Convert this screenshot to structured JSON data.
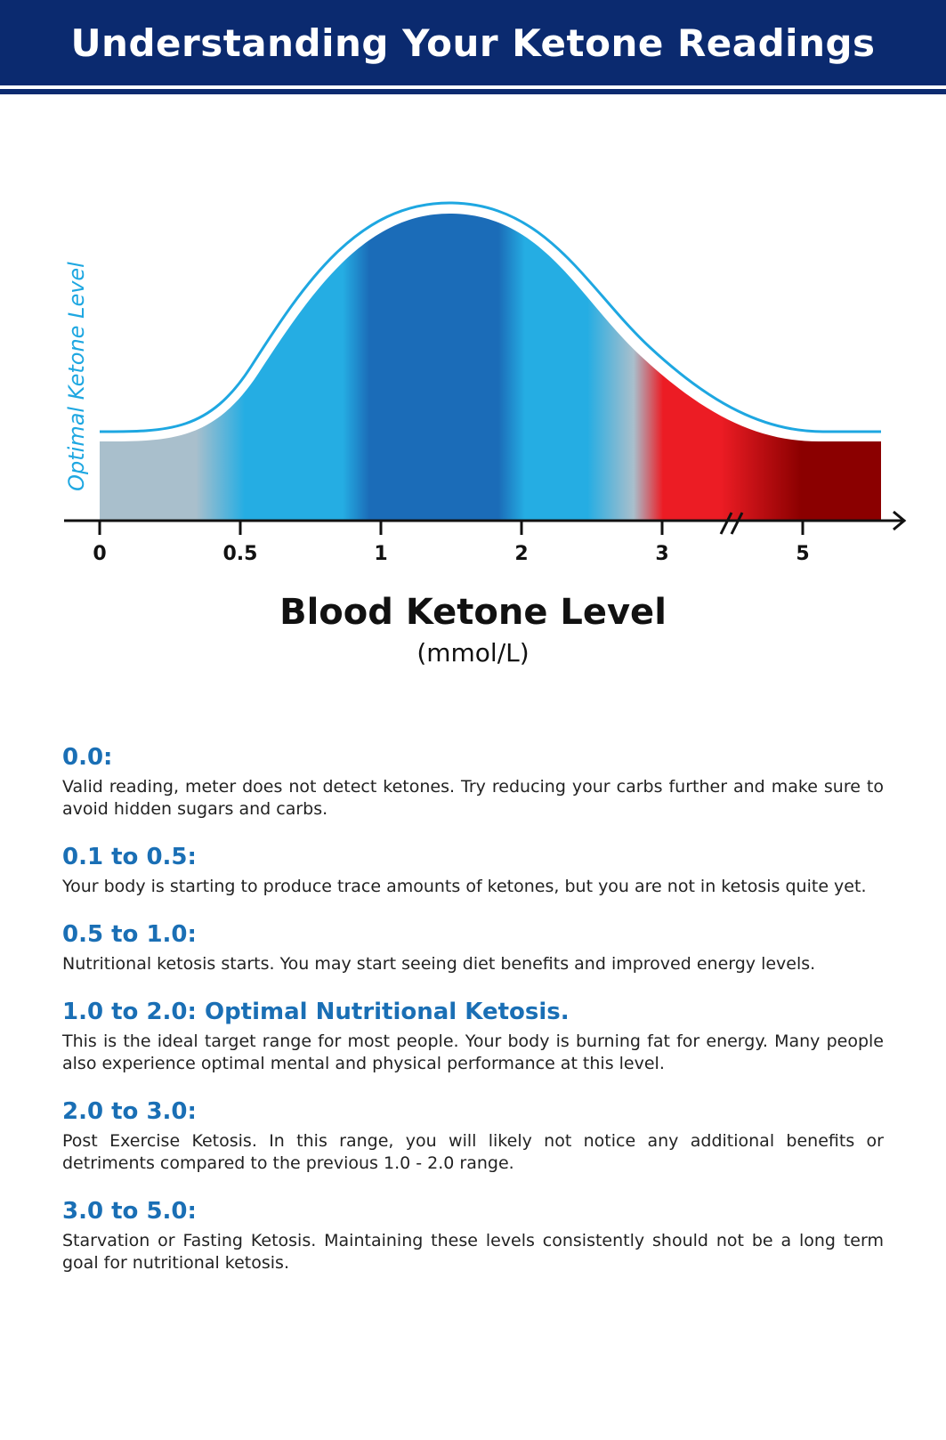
{
  "header": {
    "title": "Understanding Your Ketone Readings"
  },
  "colors": {
    "navy": "#0b2a6f",
    "outline": "#1ea7e1",
    "heading_blue": "#1a6fb5",
    "grey_blue": "#a9bfcc",
    "light_blue": "#25ade3",
    "dark_blue": "#1b6cb8",
    "red": "#ec1c24",
    "dark_red": "#8b0000"
  },
  "chart_data": {
    "type": "area",
    "title": "",
    "xlabel": "Blood Ketone Level",
    "xunit": "(mmol/L)",
    "ylabel": "Optimal Ketone Level",
    "x_ticks": [
      "0",
      "0.5",
      "1",
      "2",
      "3",
      "5"
    ],
    "axis_break_between": [
      "3",
      "5"
    ],
    "grid": false,
    "legend": "none",
    "color_bands": [
      {
        "from": "0",
        "to": "0.5",
        "color": "grey-blue"
      },
      {
        "from": "0.5",
        "to": "1",
        "color": "light-blue"
      },
      {
        "from": "1",
        "to": "2",
        "color": "dark-blue"
      },
      {
        "from": "2",
        "to": "3",
        "color": "light-blue"
      },
      {
        "from": "3",
        "to": "5+",
        "color": "red to dark-red"
      }
    ],
    "curve": "bell-shaped, peaking between 1 and 2"
  },
  "ranges": [
    {
      "heading": "0.0:",
      "text": "Valid reading, meter does not detect ketones. Try reducing your carbs further and make sure to avoid hidden sugars and carbs."
    },
    {
      "heading": "0.1 to 0.5:",
      "text": "Your body is starting to produce trace amounts of ketones, but you are not in ketosis quite yet."
    },
    {
      "heading": "0.5 to 1.0:",
      "text": "Nutritional ketosis starts. You may start seeing diet benefits and improved energy levels."
    },
    {
      "heading": "1.0 to 2.0: Optimal Nutritional Ketosis.",
      "text": "This is the ideal target range for most people. Your body is burning fat for energy. Many people also experience optimal mental and physical performance at this level."
    },
    {
      "heading": "2.0 to 3.0:",
      "text": "Post Exercise Ketosis. In this range, you will likely not notice any additional benefits or detriments compared to the previous 1.0 - 2.0 range."
    },
    {
      "heading": "3.0 to 5.0:",
      "text": "Starvation or Fasting Ketosis. Maintaining these levels consistently should not be a long term goal for nutritional ketosis."
    }
  ]
}
